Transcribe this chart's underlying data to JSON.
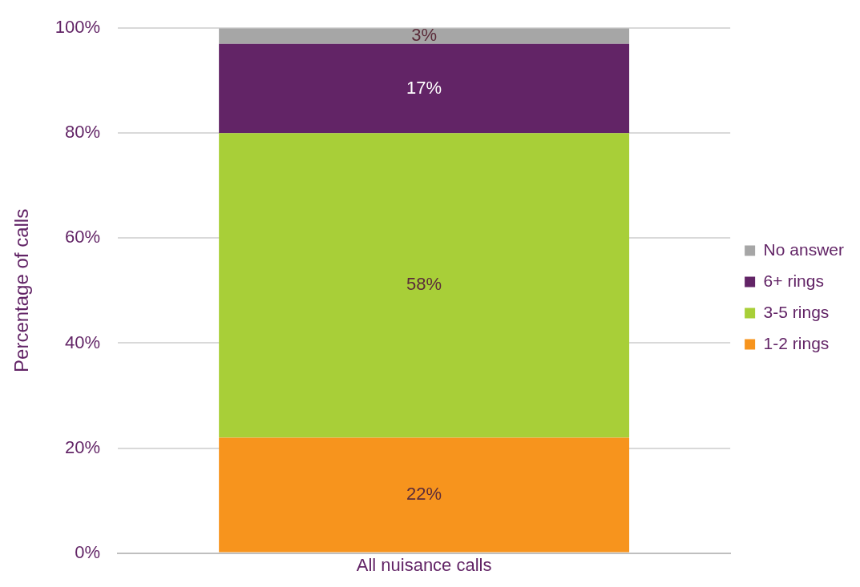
{
  "chart_data": {
    "type": "bar",
    "stacked": true,
    "ylabel": "Percentage of calls",
    "categories": [
      "All nuisance calls"
    ],
    "series": [
      {
        "name": "1-2 rings",
        "color": "#f7941d",
        "values": [
          22
        ],
        "value_labels": [
          "22%"
        ]
      },
      {
        "name": "3-5 rings",
        "color": "#a8cf38",
        "values": [
          58
        ],
        "value_labels": [
          "58%"
        ]
      },
      {
        "name": "6+ rings",
        "color": "#622466",
        "values": [
          17
        ],
        "value_labels": [
          "17%"
        ]
      },
      {
        "name": "No answer",
        "color": "#a6a6a6",
        "values": [
          3
        ],
        "value_labels": [
          "3%"
        ]
      }
    ],
    "ylim": [
      0,
      100
    ],
    "yticks": [
      {
        "value": 0,
        "label": "0%"
      },
      {
        "value": 20,
        "label": "20%"
      },
      {
        "value": 40,
        "label": "40%"
      },
      {
        "value": 60,
        "label": "60%"
      },
      {
        "value": 80,
        "label": "80%"
      },
      {
        "value": 100,
        "label": "100%"
      }
    ],
    "grid": "y",
    "legend": "right"
  }
}
